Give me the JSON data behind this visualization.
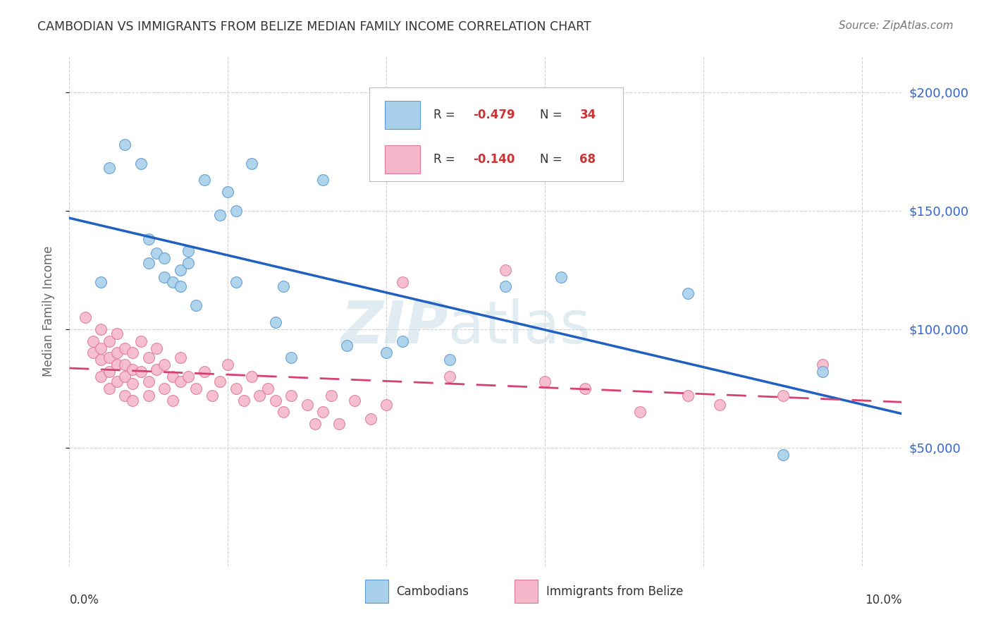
{
  "title": "CAMBODIAN VS IMMIGRANTS FROM BELIZE MEDIAN FAMILY INCOME CORRELATION CHART",
  "source": "Source: ZipAtlas.com",
  "ylabel": "Median Family Income",
  "watermark_zip": "ZIP",
  "watermark_atlas": "atlas",
  "legend_blue_r": "-0.479",
  "legend_blue_n": "34",
  "legend_pink_r": "-0.140",
  "legend_pink_n": "68",
  "blue_fill": "#A8D0EA",
  "pink_fill": "#F5B8CB",
  "blue_edge": "#5B9BD5",
  "pink_edge": "#E07898",
  "blue_line": "#2060C0",
  "pink_line": "#D84070",
  "r_n_color": "#CC3333",
  "label_color": "#333333",
  "ytick_color": "#3366CC",
  "y_ticks": [
    50000,
    100000,
    150000,
    200000
  ],
  "y_tick_labels": [
    "$50,000",
    "$100,000",
    "$150,000",
    "$200,000"
  ],
  "ylim": [
    0,
    215000
  ],
  "xlim_min": 0.0,
  "xlim_max": 0.105,
  "background_color": "#ffffff",
  "grid_color": "#cccccc",
  "cambodian_x": [
    0.004,
    0.005,
    0.007,
    0.009,
    0.01,
    0.01,
    0.011,
    0.012,
    0.012,
    0.013,
    0.014,
    0.014,
    0.015,
    0.015,
    0.016,
    0.017,
    0.019,
    0.02,
    0.021,
    0.021,
    0.023,
    0.026,
    0.027,
    0.028,
    0.032,
    0.035,
    0.04,
    0.042,
    0.048,
    0.055,
    0.062,
    0.078,
    0.09,
    0.095
  ],
  "cambodian_y": [
    120000,
    168000,
    178000,
    170000,
    138000,
    128000,
    132000,
    130000,
    122000,
    120000,
    125000,
    118000,
    133000,
    128000,
    110000,
    163000,
    148000,
    158000,
    150000,
    120000,
    170000,
    103000,
    118000,
    88000,
    163000,
    93000,
    90000,
    95000,
    87000,
    118000,
    122000,
    115000,
    47000,
    82000
  ],
  "belize_x": [
    0.002,
    0.003,
    0.003,
    0.004,
    0.004,
    0.004,
    0.004,
    0.005,
    0.005,
    0.005,
    0.005,
    0.006,
    0.006,
    0.006,
    0.006,
    0.007,
    0.007,
    0.007,
    0.007,
    0.008,
    0.008,
    0.008,
    0.008,
    0.009,
    0.009,
    0.01,
    0.01,
    0.01,
    0.011,
    0.011,
    0.012,
    0.012,
    0.013,
    0.013,
    0.014,
    0.014,
    0.015,
    0.016,
    0.017,
    0.018,
    0.019,
    0.02,
    0.021,
    0.022,
    0.023,
    0.024,
    0.025,
    0.026,
    0.027,
    0.028,
    0.03,
    0.031,
    0.032,
    0.033,
    0.034,
    0.036,
    0.038,
    0.04,
    0.042,
    0.048,
    0.055,
    0.06,
    0.065,
    0.072,
    0.078,
    0.082,
    0.09,
    0.095
  ],
  "belize_y": [
    105000,
    95000,
    90000,
    100000,
    92000,
    87000,
    80000,
    95000,
    88000,
    82000,
    75000,
    98000,
    90000,
    85000,
    78000,
    92000,
    85000,
    80000,
    72000,
    90000,
    83000,
    77000,
    70000,
    95000,
    82000,
    88000,
    78000,
    72000,
    92000,
    83000,
    85000,
    75000,
    80000,
    70000,
    88000,
    78000,
    80000,
    75000,
    82000,
    72000,
    78000,
    85000,
    75000,
    70000,
    80000,
    72000,
    75000,
    70000,
    65000,
    72000,
    68000,
    60000,
    65000,
    72000,
    60000,
    70000,
    62000,
    68000,
    120000,
    80000,
    125000,
    78000,
    75000,
    65000,
    72000,
    68000,
    72000,
    85000
  ]
}
